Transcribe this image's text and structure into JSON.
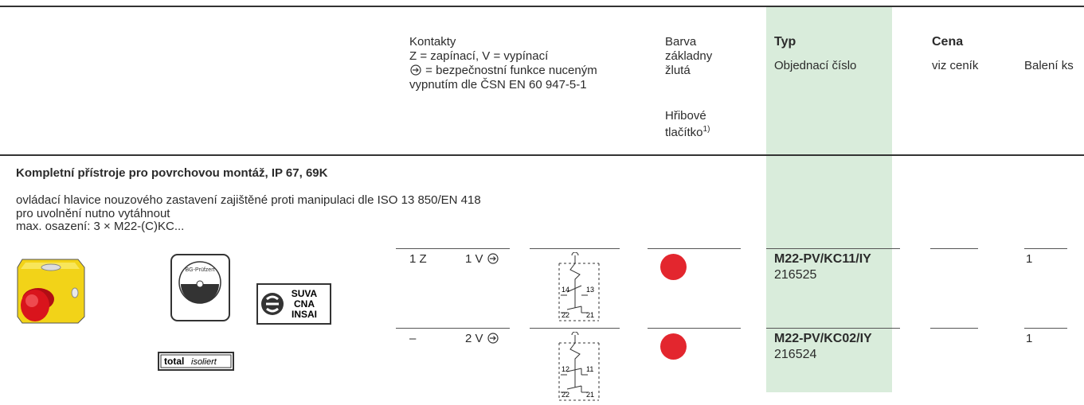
{
  "header": {
    "contacts": [
      "Kontakty",
      "Z = zapínací, V = vypínací",
      "= bezpečnostní funkce nuceným",
      "vypnutím dle ČSN EN 60 947-5-1"
    ],
    "color": [
      "Barva",
      "základny",
      "žlutá"
    ],
    "button": [
      "Hřibové",
      "tlačítko"
    ],
    "footnote_ref": "1)",
    "type": "Typ",
    "order_number": "Objednací číslo",
    "price": "Cena",
    "price_note": "viz ceník",
    "pack": "Balení ks"
  },
  "section": {
    "title": "Kompletní přístroje pro povrchovou montáž, IP 67, 69K",
    "description": [
      "ovládací hlavice nouzového zastavení zajištěné proti manipulaci dle ISO 13 850/EN 418",
      "pro uvolnění nutno vytáhnout",
      "max. osazení: 3 × M22-(C)KC..."
    ]
  },
  "rows": [
    {
      "contacts_z": "1 Z",
      "contacts_v": "1 V",
      "diagram": [
        "14",
        "13",
        "22",
        "21"
      ],
      "type": "M22-PV/KC11/IY",
      "order_number": "216525",
      "pack": "1"
    },
    {
      "contacts_z": "–",
      "contacts_v": "2 V",
      "diagram": [
        "12",
        "11",
        "22",
        "21"
      ],
      "type": "M22-PV/KC02/IY",
      "order_number": "216524",
      "pack": "1"
    }
  ],
  "logos": {
    "gauge": "BG-Prüfzert",
    "suva": [
      "SUVA",
      "CNA",
      "INSAI"
    ],
    "total": "total",
    "isoliert": "isoliert"
  }
}
